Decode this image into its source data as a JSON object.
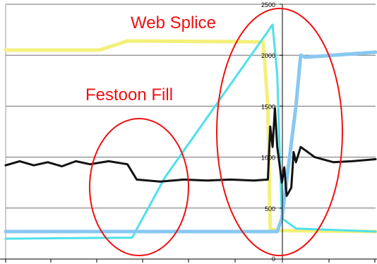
{
  "chart_data": {
    "type": "line",
    "title": "",
    "xlabel": "",
    "ylabel": "",
    "ylim": [
      0,
      2500
    ],
    "yticks": [
      "0",
      "500",
      "1000",
      "1500",
      "2000",
      "2500"
    ],
    "grid": true,
    "x_axis": "unlabeled time axis, shared by all series",
    "series": [
      {
        "name": "",
        "color": "#f3f07a",
        "points": [
          [
            0,
            2050
          ],
          [
            20,
            2050
          ],
          [
            26,
            2140
          ],
          [
            55,
            2130
          ],
          [
            56,
            1500
          ],
          [
            56.5,
            300
          ],
          [
            58,
            280
          ],
          [
            79,
            270
          ]
        ]
      },
      {
        "name": "",
        "color": "#4fe0ea",
        "points": [
          [
            0,
            200
          ],
          [
            27,
            210
          ],
          [
            34,
            800
          ],
          [
            57,
            2300
          ],
          [
            58,
            1800
          ],
          [
            59,
            400
          ],
          [
            62,
            300
          ],
          [
            79,
            270
          ]
        ]
      },
      {
        "name": "",
        "color": "#88c8f2",
        "points": [
          [
            0,
            270
          ],
          [
            58,
            270
          ],
          [
            59,
            400
          ],
          [
            62,
            1500
          ],
          [
            63,
            2000
          ],
          [
            64,
            1980
          ],
          [
            79,
            2030
          ]
        ]
      },
      {
        "name": "",
        "color": "#111111",
        "points": [
          [
            0,
            920
          ],
          [
            3,
            960
          ],
          [
            6,
            920
          ],
          [
            9,
            950
          ],
          [
            12,
            910
          ],
          [
            15,
            960
          ],
          [
            18,
            930
          ],
          [
            22,
            960
          ],
          [
            26,
            930
          ],
          [
            28,
            780
          ],
          [
            33,
            760
          ],
          [
            38,
            780
          ],
          [
            43,
            770
          ],
          [
            48,
            780
          ],
          [
            53,
            770
          ],
          [
            56,
            780
          ],
          [
            56.5,
            1300
          ],
          [
            57,
            1100
          ],
          [
            57.5,
            1480
          ],
          [
            58,
            1100
          ],
          [
            59,
            750
          ],
          [
            59.5,
            900
          ],
          [
            60,
            620
          ],
          [
            61,
            700
          ],
          [
            61.5,
            1050
          ],
          [
            62,
            950
          ],
          [
            63,
            1100
          ],
          [
            66,
            1000
          ],
          [
            70,
            950
          ],
          [
            74,
            960
          ],
          [
            79,
            980
          ]
        ]
      }
    ],
    "annotations": [
      {
        "text": "Web Splice",
        "color": "#ee1111"
      },
      {
        "text": "Festoon Fill",
        "color": "#ee1111"
      }
    ]
  }
}
